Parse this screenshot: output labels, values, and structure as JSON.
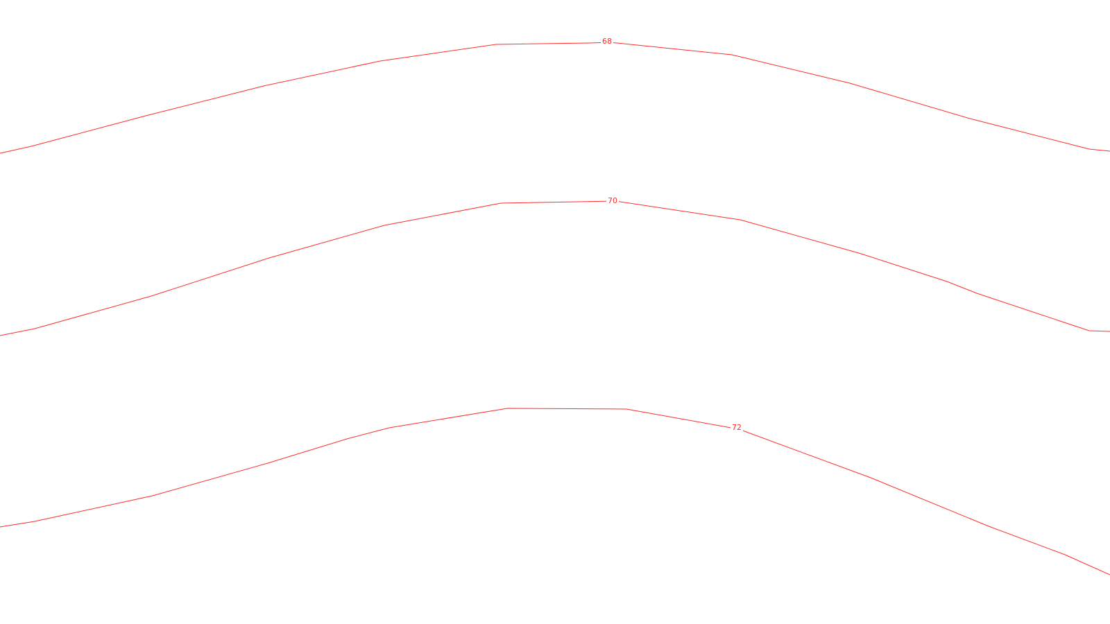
{
  "map": {
    "background": "#ffffff",
    "contour_color": "#ff2a2a",
    "contours": [
      {
        "id": "contour-68",
        "label": "68"
      },
      {
        "id": "contour-70",
        "label": "70"
      },
      {
        "id": "contour-72",
        "label": "72"
      }
    ]
  }
}
